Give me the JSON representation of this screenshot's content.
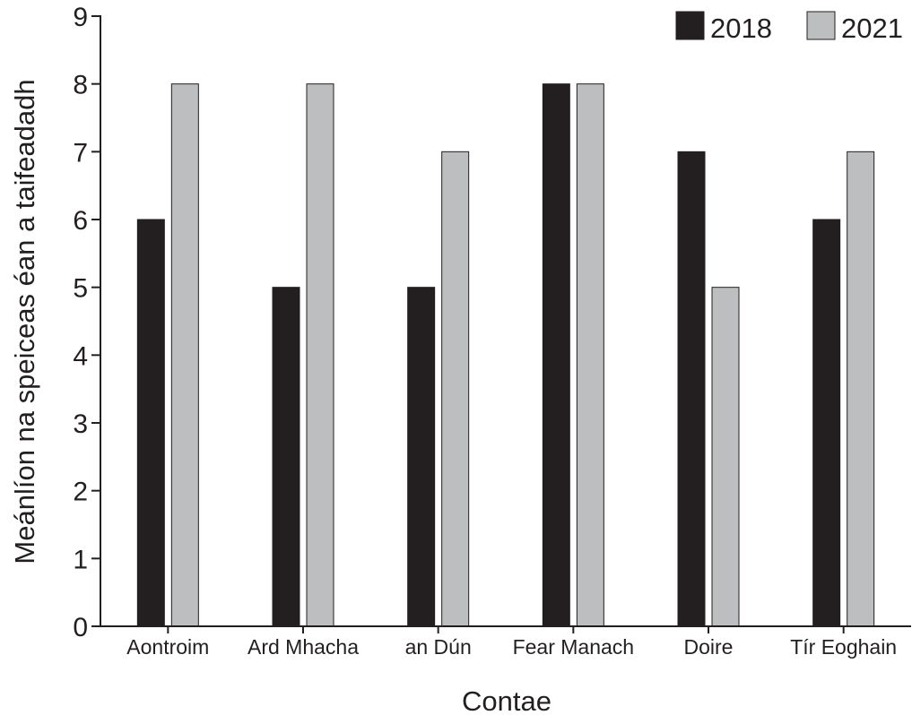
{
  "chart_data": {
    "type": "bar",
    "title": "",
    "xlabel": "Contae",
    "ylabel": "Meánlíon na speiceas éan a taifeadadh",
    "categories": [
      "Aontroim",
      "Ard Mhacha",
      "an Dún",
      "Fear Manach",
      "Doire",
      "Tír Eoghain"
    ],
    "series": [
      {
        "name": "2018",
        "values": [
          6,
          5,
          5,
          8,
          7,
          6
        ],
        "color": "#231f20"
      },
      {
        "name": "2021",
        "values": [
          8,
          8,
          7,
          8,
          5,
          7
        ],
        "color": "#bcbec0"
      }
    ],
    "ylim": [
      0,
      9
    ],
    "yticks": [
      "0",
      "1",
      "2",
      "3",
      "4",
      "5",
      "6",
      "7",
      "8",
      "9"
    ],
    "grid": false,
    "legend_position": "top-right"
  }
}
